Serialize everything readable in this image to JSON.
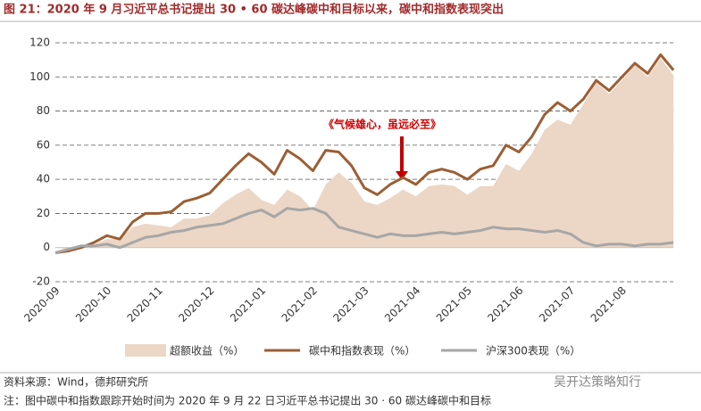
{
  "chart_data": {
    "type": "line",
    "title": "图 21：2020 年 9 月习近平总书记提出 30 • 60 碳达峰碳中和目标以来，碳中和指数表现突出",
    "annotation": "《气候雄心，虽远必至》",
    "source": "资料来源：Wind，德邦研究所",
    "note": "注：图中碳中和指数跟踪开始时间为 2020 年 9 月 22 日习近平总书记提出 30 · 60 碳达峰碳中和目标",
    "watermark": "吴开达策略知行",
    "categories": [
      "2020-09",
      null,
      null,
      null,
      "2020-10",
      null,
      null,
      null,
      "2020-11",
      null,
      null,
      null,
      "2020-12",
      null,
      null,
      null,
      "2021-01",
      null,
      null,
      null,
      "2021-02",
      null,
      null,
      null,
      "2021-03",
      null,
      null,
      null,
      "2021-04",
      null,
      null,
      null,
      "2021-05",
      null,
      null,
      null,
      "2021-06",
      null,
      null,
      null,
      "2021-07",
      null,
      null,
      null,
      "2021-08",
      null,
      null,
      null,
      null
    ],
    "series": [
      {
        "name": "超额收益（%）",
        "style": "area",
        "color": "#ecd6c5",
        "values": [
          0,
          -1,
          -1,
          2,
          5,
          5,
          12,
          14,
          13,
          12,
          17,
          17,
          19,
          26,
          31,
          35,
          28,
          25,
          34,
          30,
          22,
          37,
          44,
          38,
          27,
          25,
          29,
          34,
          30,
          36,
          37,
          36,
          31,
          36,
          36,
          49,
          45,
          55,
          69,
          75,
          72,
          84,
          97,
          90,
          98,
          107,
          100,
          111,
          101
        ]
      },
      {
        "name": "碳中和指数表现（%）",
        "style": "line",
        "color": "#9b5f35",
        "values": [
          -3,
          -2,
          0,
          3,
          7,
          5,
          15,
          20,
          20,
          21,
          27,
          29,
          32,
          40,
          48,
          55,
          50,
          43,
          57,
          52,
          45,
          57,
          56,
          48,
          35,
          31,
          37,
          41,
          37,
          44,
          46,
          44,
          40,
          46,
          48,
          60,
          56,
          65,
          78,
          85,
          80,
          87,
          98,
          92,
          100,
          108,
          102,
          113,
          104
        ]
      },
      {
        "name": "沪深300表现（%）",
        "style": "line",
        "color": "#a6a6a6",
        "values": [
          -3,
          -1,
          1,
          1,
          2,
          0,
          3,
          6,
          7,
          9,
          10,
          12,
          13,
          14,
          17,
          20,
          22,
          18,
          23,
          22,
          23,
          20,
          12,
          10,
          8,
          6,
          8,
          7,
          7,
          8,
          9,
          8,
          9,
          10,
          12,
          11,
          11,
          10,
          9,
          10,
          8,
          3,
          1,
          2,
          2,
          1,
          2,
          2,
          3
        ]
      }
    ],
    "ylim": [
      -20,
      120
    ],
    "yticks": [
      -20,
      0,
      20,
      40,
      60,
      80,
      100,
      120
    ],
    "grid": true
  }
}
